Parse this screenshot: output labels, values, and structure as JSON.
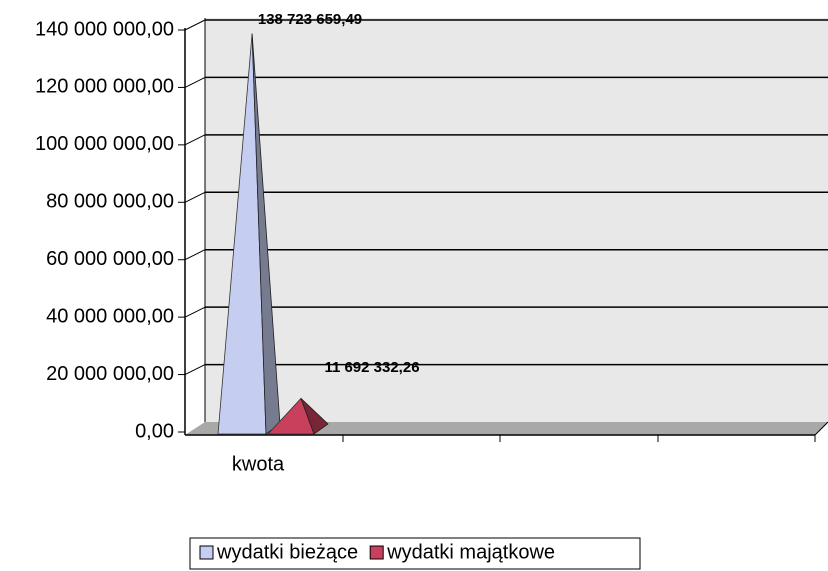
{
  "chart_data": {
    "type": "pyramid",
    "categories": [
      "kwota"
    ],
    "series": [
      {
        "name": "wydatki bieżące",
        "color": "#c5cdf0",
        "values": [
          138723659.49
        ],
        "value_labels": [
          "138 723 659,49"
        ]
      },
      {
        "name": "wydatki majątkowe",
        "color": "#c8405c",
        "values": [
          11692332.26
        ],
        "value_labels": [
          "11 692 332,26"
        ]
      }
    ],
    "ylim": [
      0,
      140000000
    ],
    "yticks": [
      {
        "value": 0,
        "label": "0,00"
      },
      {
        "value": 20000000,
        "label": "20 000 000,00"
      },
      {
        "value": 40000000,
        "label": "40 000 000,00"
      },
      {
        "value": 60000000,
        "label": "60 000 000,00"
      },
      {
        "value": 80000000,
        "label": "80 000 000,00"
      },
      {
        "value": 100000000,
        "label": "100 000 000,00"
      },
      {
        "value": 120000000,
        "label": "120 000 000,00"
      },
      {
        "value": 140000000,
        "label": "140 000 000,00"
      }
    ],
    "grid": true,
    "legend": "bottom"
  }
}
